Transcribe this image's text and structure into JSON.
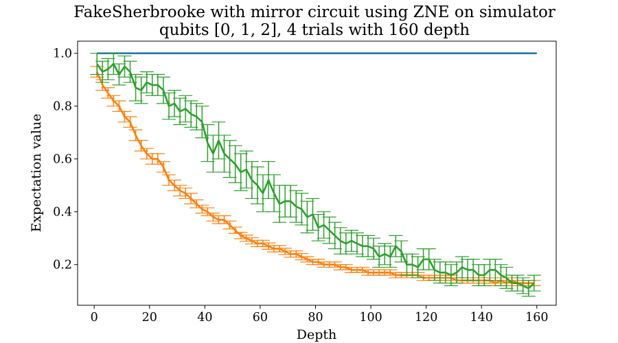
{
  "chart_data": {
    "type": "line",
    "title": "FakeSherbrooke with mirror circuit using ZNE on simulator",
    "subtitle": "qubits [0, 1, 2], 4 trials with 160 depth",
    "xlabel": "Depth",
    "ylabel": "Expectation value",
    "xlim": [
      -6,
      167
    ],
    "ylim": [
      0.046,
      1.046
    ],
    "xticks": [
      0,
      20,
      40,
      60,
      80,
      100,
      120,
      140,
      160
    ],
    "yticks": [
      0.2,
      0.4,
      0.6,
      0.8,
      1.0
    ],
    "ytick_labels": [
      "0.2",
      "0.4",
      "0.6",
      "0.8",
      "1.0"
    ],
    "grid": false,
    "series": [
      {
        "color": "#1f77b4",
        "error_bars": false,
        "x": [
          1,
          160
        ],
        "y": [
          1.0,
          1.0
        ]
      },
      {
        "color": "#ff7f0e",
        "error_bars": true,
        "x": [
          1,
          3,
          5,
          7,
          9,
          11,
          13,
          15,
          17,
          19,
          21,
          23,
          25,
          27,
          29,
          31,
          33,
          35,
          37,
          39,
          41,
          43,
          45,
          47,
          49,
          51,
          53,
          55,
          57,
          59,
          61,
          63,
          65,
          67,
          69,
          71,
          73,
          75,
          77,
          79,
          81,
          83,
          85,
          87,
          89,
          91,
          93,
          95,
          97,
          99,
          101,
          103,
          105,
          107,
          109,
          111,
          113,
          115,
          117,
          119,
          121,
          123,
          125,
          127,
          129,
          131,
          133,
          135,
          137,
          139,
          141,
          143,
          145,
          147,
          149,
          151,
          153,
          155,
          157,
          159
        ],
        "y": [
          0.93,
          0.88,
          0.85,
          0.82,
          0.8,
          0.76,
          0.74,
          0.69,
          0.65,
          0.62,
          0.6,
          0.6,
          0.57,
          0.52,
          0.5,
          0.48,
          0.47,
          0.45,
          0.43,
          0.41,
          0.4,
          0.38,
          0.37,
          0.37,
          0.35,
          0.33,
          0.31,
          0.3,
          0.29,
          0.28,
          0.28,
          0.27,
          0.26,
          0.26,
          0.25,
          0.24,
          0.24,
          0.23,
          0.22,
          0.21,
          0.21,
          0.2,
          0.2,
          0.2,
          0.19,
          0.19,
          0.18,
          0.18,
          0.18,
          0.17,
          0.17,
          0.17,
          0.17,
          0.17,
          0.16,
          0.16,
          0.16,
          0.16,
          0.16,
          0.15,
          0.15,
          0.15,
          0.15,
          0.15,
          0.15,
          0.14,
          0.14,
          0.14,
          0.14,
          0.14,
          0.14,
          0.14,
          0.13,
          0.14,
          0.13,
          0.14,
          0.13,
          0.13,
          0.13,
          0.13
        ],
        "err": [
          0.02,
          0.02,
          0.02,
          0.02,
          0.02,
          0.02,
          0.02,
          0.02,
          0.02,
          0.02,
          0.02,
          0.02,
          0.02,
          0.02,
          0.02,
          0.02,
          0.02,
          0.02,
          0.015,
          0.015,
          0.015,
          0.015,
          0.015,
          0.015,
          0.015,
          0.012,
          0.012,
          0.012,
          0.012,
          0.012,
          0.012,
          0.012,
          0.012,
          0.012,
          0.012,
          0.012,
          0.012,
          0.012,
          0.01,
          0.01,
          0.01,
          0.01,
          0.01,
          0.01,
          0.01,
          0.01,
          0.01,
          0.01,
          0.01,
          0.01,
          0.01,
          0.01,
          0.01,
          0.01,
          0.01,
          0.01,
          0.01,
          0.01,
          0.01,
          0.01,
          0.01,
          0.01,
          0.01,
          0.01,
          0.01,
          0.01,
          0.01,
          0.01,
          0.01,
          0.01,
          0.01,
          0.01,
          0.01,
          0.01,
          0.01,
          0.01,
          0.01,
          0.01,
          0.01,
          0.01
        ]
      },
      {
        "color": "#2ca02c",
        "error_bars": true,
        "x": [
          1,
          3,
          5,
          7,
          9,
          11,
          13,
          15,
          17,
          19,
          21,
          23,
          25,
          27,
          29,
          31,
          33,
          35,
          37,
          39,
          41,
          43,
          45,
          47,
          49,
          51,
          53,
          55,
          57,
          59,
          61,
          63,
          65,
          67,
          69,
          71,
          73,
          75,
          77,
          79,
          81,
          83,
          85,
          87,
          89,
          91,
          93,
          95,
          97,
          99,
          101,
          103,
          105,
          107,
          109,
          111,
          113,
          115,
          117,
          119,
          121,
          123,
          125,
          127,
          129,
          131,
          133,
          135,
          137,
          139,
          141,
          143,
          145,
          147,
          149,
          151,
          153,
          155,
          157,
          159
        ],
        "y": [
          0.96,
          0.93,
          0.94,
          0.96,
          0.92,
          0.95,
          0.93,
          0.87,
          0.86,
          0.89,
          0.88,
          0.88,
          0.86,
          0.8,
          0.81,
          0.78,
          0.79,
          0.77,
          0.76,
          0.74,
          0.66,
          0.62,
          0.67,
          0.62,
          0.6,
          0.58,
          0.55,
          0.56,
          0.52,
          0.5,
          0.47,
          0.52,
          0.47,
          0.43,
          0.44,
          0.44,
          0.42,
          0.41,
          0.38,
          0.39,
          0.34,
          0.35,
          0.33,
          0.31,
          0.29,
          0.28,
          0.29,
          0.28,
          0.27,
          0.27,
          0.26,
          0.23,
          0.24,
          0.23,
          0.27,
          0.25,
          0.2,
          0.2,
          0.19,
          0.22,
          0.22,
          0.18,
          0.17,
          0.17,
          0.16,
          0.17,
          0.19,
          0.18,
          0.18,
          0.16,
          0.16,
          0.18,
          0.18,
          0.16,
          0.15,
          0.13,
          0.13,
          0.12,
          0.11,
          0.13
        ],
        "err": [
          0.04,
          0.04,
          0.04,
          0.04,
          0.04,
          0.04,
          0.04,
          0.05,
          0.05,
          0.04,
          0.04,
          0.04,
          0.05,
          0.05,
          0.05,
          0.05,
          0.05,
          0.05,
          0.05,
          0.06,
          0.07,
          0.07,
          0.07,
          0.07,
          0.07,
          0.07,
          0.07,
          0.07,
          0.07,
          0.07,
          0.07,
          0.07,
          0.07,
          0.07,
          0.06,
          0.06,
          0.06,
          0.06,
          0.06,
          0.06,
          0.05,
          0.05,
          0.05,
          0.05,
          0.05,
          0.04,
          0.04,
          0.04,
          0.04,
          0.04,
          0.04,
          0.04,
          0.04,
          0.04,
          0.04,
          0.04,
          0.04,
          0.04,
          0.04,
          0.04,
          0.04,
          0.04,
          0.04,
          0.04,
          0.04,
          0.04,
          0.04,
          0.04,
          0.04,
          0.04,
          0.04,
          0.04,
          0.04,
          0.04,
          0.04,
          0.03,
          0.03,
          0.03,
          0.03,
          0.03
        ]
      }
    ]
  }
}
